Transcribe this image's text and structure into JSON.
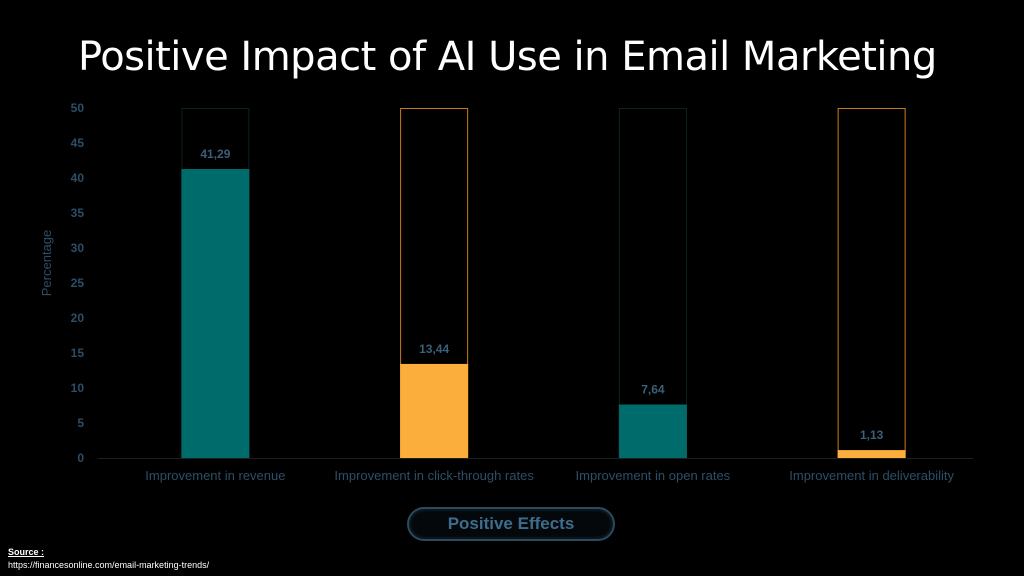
{
  "slide": {
    "title": "Positive Impact of AI Use in Email Marketing",
    "button_label": "Positive Effects",
    "source_label": "Source :",
    "source_url": "https://financesonline.com/email-marketing-trends/"
  },
  "colors": {
    "background": "#000000",
    "teal": "#006b6b",
    "orange": "#fbae3c",
    "axis_text": "#2d4e66",
    "label_text": "#3a5f78"
  },
  "chart_data": {
    "type": "bar",
    "categories": [
      "Improvement in revenue",
      "Improvement in click-through rates",
      "Improvement in open rates",
      "Improvement in deliverability"
    ],
    "values": [
      41.29,
      13.44,
      7.64,
      1.13
    ],
    "data_labels": [
      "41,29",
      "13,44",
      "7,64",
      "1,13"
    ],
    "bar_colors": [
      "#006b6b",
      "#fbae3c",
      "#006b6b",
      "#fbae3c"
    ],
    "outline_colors": [
      "#0b2424",
      "#c97d1e",
      "#0b2424",
      "#c97d1e"
    ],
    "ylabel": "Percentage",
    "xlabel": "",
    "ylim": [
      0,
      50
    ],
    "yticks": [
      0,
      5,
      10,
      15,
      20,
      25,
      30,
      35,
      40,
      45,
      50
    ],
    "grid": false
  }
}
